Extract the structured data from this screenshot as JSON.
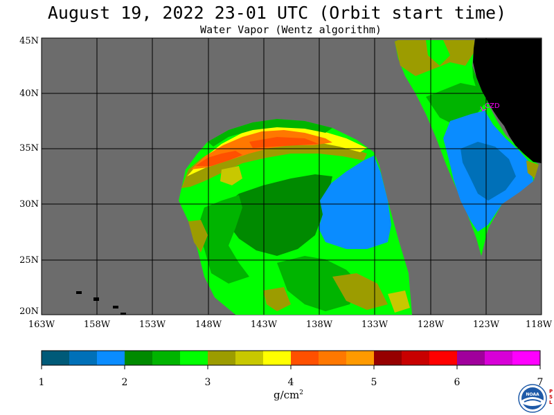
{
  "title": "August 19, 2022  23-01 UTC  (Orbit start time)",
  "subtitle": "Water Vapor (Wentz algorithm)",
  "lat_labels": [
    "45N",
    "40N",
    "35N",
    "30N",
    "25N",
    "20N"
  ],
  "lon_labels": [
    "163W",
    "158W",
    "153W",
    "148W",
    "143W",
    "138W",
    "133W",
    "128W",
    "123W",
    "118W"
  ],
  "station_label": "CZD",
  "colorbar": {
    "ticks": [
      "1",
      "2",
      "3",
      "4",
      "5",
      "6",
      "7"
    ],
    "unit": "g/cm",
    "unit_exp": "2",
    "colors": [
      "#005a78",
      "#0070b8",
      "#0a8cff",
      "#008a00",
      "#00b400",
      "#00ff00",
      "#9c9c00",
      "#c8c800",
      "#ffff00",
      "#ff5000",
      "#ff7800",
      "#ff9a00",
      "#960000",
      "#c80000",
      "#ff0000",
      "#a0009c",
      "#d800d8",
      "#ff00ff"
    ]
  },
  "map_colors": {
    "nodata": "#6c6c6c",
    "land": "#000000",
    "grid": "#000000",
    "station": "#ff00ff"
  },
  "logo": {
    "text": "NOAA",
    "psl": [
      "P",
      "S",
      "L"
    ]
  }
}
